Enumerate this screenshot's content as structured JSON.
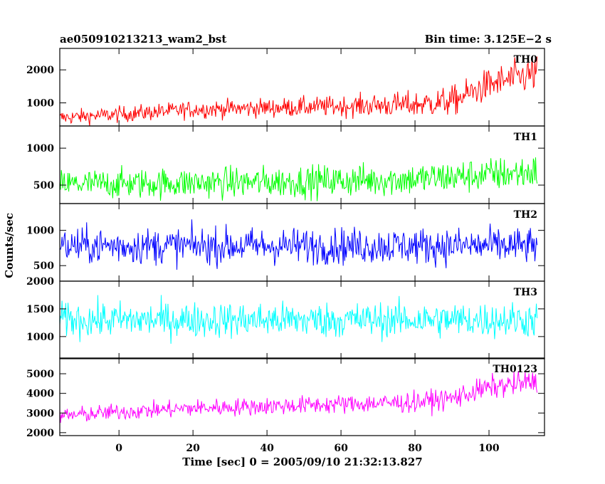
{
  "header": {
    "title": "ae050910213213_wam2_bst",
    "bin_time": "Bin time: 3.125E−2 s"
  },
  "chart_data": {
    "type": "line",
    "xlabel": "Time [sec] 0 = 2005/09/10 21:32:13.827",
    "ylabel": "Counts/sec",
    "xlim": [
      -16,
      115
    ],
    "x_ticks": [
      0,
      20,
      40,
      60,
      80,
      100
    ],
    "x_tick_labels": [
      "0",
      "20",
      "40",
      "60",
      "80",
      "100"
    ],
    "x_range": [
      -16,
      113
    ],
    "bin_time_s": 0.03125,
    "panels": [
      {
        "name": "TH0",
        "color": "#ff0000",
        "ylim": [
          300,
          2650
        ],
        "y_ticks": [
          1000,
          2000
        ],
        "y_tick_labels": [
          "1000",
          "2000"
        ],
        "trend": [
          [
            -16,
            550
          ],
          [
            0,
            650
          ],
          [
            20,
            800
          ],
          [
            40,
            850
          ],
          [
            60,
            900
          ],
          [
            80,
            950
          ],
          [
            90,
            1050
          ],
          [
            100,
            1550
          ],
          [
            113,
            1900
          ]
        ],
        "spread": [
          [
            -16,
            180
          ],
          [
            60,
            250
          ],
          [
            100,
            400
          ],
          [
            113,
            450
          ]
        ]
      },
      {
        "name": "TH1",
        "color": "#00ff00",
        "ylim": [
          250,
          1300
        ],
        "y_ticks": [
          500,
          1000
        ],
        "y_tick_labels": [
          "500",
          "1000"
        ],
        "trend": [
          [
            -16,
            510
          ],
          [
            40,
            540
          ],
          [
            80,
            580
          ],
          [
            100,
            640
          ],
          [
            113,
            680
          ]
        ],
        "spread": [
          [
            -16,
            160
          ],
          [
            113,
            190
          ]
        ]
      },
      {
        "name": "TH2",
        "color": "#0000ff",
        "ylim": [
          280,
          1380
        ],
        "y_ticks": [
          500,
          1000
        ],
        "y_tick_labels": [
          "500",
          "1000"
        ],
        "trend": [
          [
            -16,
            780
          ],
          [
            113,
            780
          ]
        ],
        "spread": [
          [
            -16,
            210
          ],
          [
            113,
            210
          ]
        ]
      },
      {
        "name": "TH3",
        "color": "#00ffff",
        "ylim": [
          600,
          2000
        ],
        "y_ticks": [
          1000,
          1500,
          2000
        ],
        "y_tick_labels": [
          "1000",
          "1500",
          "2000"
        ],
        "trend": [
          [
            -16,
            1300
          ],
          [
            113,
            1300
          ]
        ],
        "spread": [
          [
            -16,
            260
          ],
          [
            113,
            260
          ]
        ]
      },
      {
        "name": "TH0123",
        "color": "#ff00ff",
        "ylim": [
          1850,
          5800
        ],
        "y_ticks": [
          2000,
          3000,
          4000,
          5000
        ],
        "y_tick_labels": [
          "2000",
          "3000",
          "4000",
          "5000"
        ],
        "trend": [
          [
            -16,
            2850
          ],
          [
            0,
            3050
          ],
          [
            20,
            3250
          ],
          [
            40,
            3350
          ],
          [
            60,
            3450
          ],
          [
            80,
            3550
          ],
          [
            90,
            3750
          ],
          [
            100,
            4300
          ],
          [
            113,
            4600
          ]
        ],
        "spread": [
          [
            -16,
            330
          ],
          [
            60,
            380
          ],
          [
            100,
            470
          ],
          [
            113,
            520
          ]
        ]
      }
    ]
  }
}
